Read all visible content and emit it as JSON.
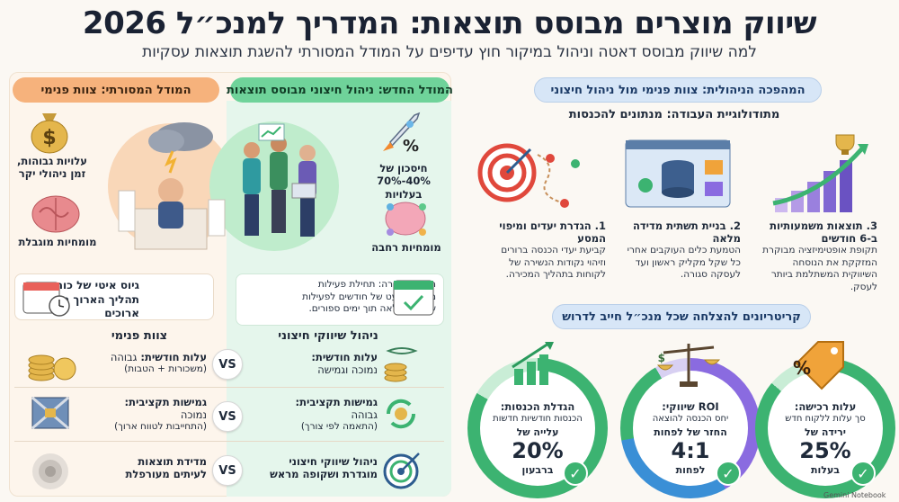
{
  "header": {
    "title": "שיווק מוצרים מבוסס תוצאות: המדריך למנכ״ל 2026",
    "subtitle": "למה שיווק מבוסס דאטה וניהול במיקור חוץ עדיפים על המודל המסורתי להשגת תוצאות עסקיות"
  },
  "traditional": {
    "heading": "המודל המסורתי: צוות פנימי",
    "cost_label": "עלויות גבוהות, זמן ניהולי יקר",
    "expertise_label": "מומחיות מוגבלת",
    "hiring_text": "גיוס איטי של כוח אדם: תהליך הארוך חודשים ארוכים"
  },
  "new_model": {
    "heading": "המודל החדש: ניהול חיצוני מבוסס תוצאות",
    "savings_label": "חיסכון של 40%-70% בעלויות",
    "expertise_label": "מומחיות רחבה",
    "fast_text": "הקמה מהירה: תחילת פעילות מעבר מניעט של חודשים לפעילות שיווקית מלאה תוך ימים ספורים."
  },
  "comparison": {
    "new_header": "ניהול שיווקי חיצוני",
    "trad_header": "צוות פנימי",
    "vs": "VS",
    "rows": [
      {
        "new_title": "עלות חודשית:",
        "new_value": "נמוכה וגמישה",
        "trad_title": "עלות חודשית:",
        "trad_value": "גבוהה",
        "trad_note": "(משכורות + הטבות)"
      },
      {
        "new_title": "גמישות תקציבית:",
        "new_value": "גבוהה",
        "new_note": "(התאמה לפי צורך)",
        "trad_title": "גמישות תקציבית:",
        "trad_value": "נמוכה",
        "trad_note": "(התחייבות לטווח ארוך)"
      },
      {
        "new_title": "ניהול שיווקי חיצוני",
        "new_value": "מוגדרת ושקופה מראש",
        "trad_title": "מדידת תוצאות",
        "trad_value": "לעיתים מעורפלת"
      }
    ]
  },
  "revolution": {
    "heading": "המהפכה הניהולית: צוות פנימי מול ניהול חיצוני",
    "method": "מתודולוגיית העבודה: מנתונים להכנסות",
    "steps": [
      {
        "title": "1. הגדרת יעדים ומיפוי המסע",
        "desc": "קביעת יעדי הכנסה ברורים וזיהוי נקודות הנשירה של לקוחות בתהליך המכירה."
      },
      {
        "title": "2. בניית תשתית מדידה מלאה",
        "desc": "הטמעת כלים העוקבים אחרי כל שקל מקליק ראשון ועד לעסקה סגורה."
      },
      {
        "title": "3. תוצאות משמעותיות ב-6 חודשים",
        "desc": "תקופת אופטימיזציה מבוקרת המזקקת את הנוסחה השיווקית המשתלמת ביותר לעסק."
      }
    ]
  },
  "criteria": {
    "heading": "קריטריונים להצלחה שכל מנכ״ל חייב לדרוש",
    "items": [
      {
        "title": "הגדלת הכנסות:",
        "desc": "הכנסות חודשיות חדשות",
        "pre": "עלייה של",
        "value": "20%",
        "post": "ברבעון"
      },
      {
        "title": "ROI שיווקי:",
        "desc": "יחס הכנסה להוצאה",
        "pre": "החזר של לפחות",
        "value": "4:1",
        "post": "לפחות"
      },
      {
        "title": "עלות רכישה:",
        "desc": "סך עלות ללקוח חדש",
        "pre": "ירידה של",
        "value": "25%",
        "post": "בעלות"
      }
    ]
  },
  "footer": {
    "brand": "Gemini Notebook"
  },
  "colors": {
    "accent_green": "#3cb371",
    "accent_orange": "#f6b27c",
    "accent_blue": "#d7e6f7",
    "ring_purple": "#8a6be0"
  }
}
